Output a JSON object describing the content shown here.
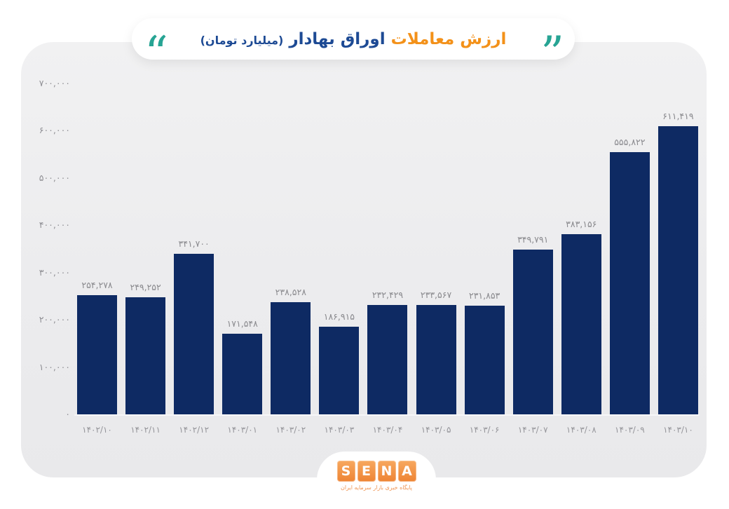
{
  "title": {
    "highlight": "ارزش معاملات",
    "rest": "اوراق بهادار",
    "unit": "(میلیارد تومان)",
    "quote_left_glyph": "“",
    "quote_right_glyph": "”"
  },
  "colors": {
    "bar": "#0e2a63",
    "title_highlight": "#f39119",
    "title_main": "#1d4a94",
    "quote_teal": "#27a494",
    "sena_orange": "#ee8434",
    "card_background": "#ececee",
    "label_gray": "#8a8a8e"
  },
  "chart_data": {
    "type": "bar",
    "title": "ارزش معاملات اوراق بهادار (میلیارد تومان)",
    "xlabel": "",
    "ylabel": "",
    "ylim": [
      0,
      700000
    ],
    "grid": false,
    "legend": "none",
    "categories": [
      "۱۴۰۲/۱۰",
      "۱۴۰۲/۱۱",
      "۱۴۰۲/۱۲",
      "۱۴۰۳/۰۱",
      "۱۴۰۳/۰۲",
      "۱۴۰۳/۰۳",
      "۱۴۰۳/۰۴",
      "۱۴۰۳/۰۵",
      "۱۴۰۳/۰۶",
      "۱۴۰۳/۰۷",
      "۱۴۰۳/۰۸",
      "۱۴۰۳/۰۹",
      "۱۴۰۳/۱۰"
    ],
    "categories_latin": [
      "1402/10",
      "1402/11",
      "1402/12",
      "1403/01",
      "1403/02",
      "1403/03",
      "1403/04",
      "1403/05",
      "1403/06",
      "1403/07",
      "1403/08",
      "1403/09",
      "1403/10"
    ],
    "values": [
      254278,
      249252,
      341700,
      171548,
      238528,
      186915,
      232429,
      233567,
      231853,
      349791,
      383156,
      555822,
      611419
    ],
    "value_labels": [
      "۲۵۴,۲۷۸",
      "۲۴۹,۲۵۲",
      "۳۴۱,۷۰۰",
      "۱۷۱,۵۴۸",
      "۲۳۸,۵۲۸",
      "۱۸۶,۹۱۵",
      "۲۳۲,۴۲۹",
      "۲۳۳,۵۶۷",
      "۲۳۱,۸۵۳",
      "۳۴۹,۷۹۱",
      "۳۸۳,۱۵۶",
      "۵۵۵,۸۲۲",
      "۶۱۱,۴۱۹"
    ],
    "y_ticks": [
      {
        "label": "۷۰۰,۰۰۰",
        "value": 700000
      },
      {
        "label": "۶۰۰,۰۰۰",
        "value": 600000
      },
      {
        "label": "۵۰۰,۰۰۰",
        "value": 500000
      },
      {
        "label": "۴۰۰,۰۰۰",
        "value": 400000
      },
      {
        "label": "۳۰۰,۰۰۰",
        "value": 300000
      },
      {
        "label": "۲۰۰,۰۰۰",
        "value": 200000
      },
      {
        "label": "۱۰۰,۰۰۰",
        "value": 100000
      },
      {
        "label": "۰",
        "value": 0
      }
    ]
  },
  "footer": {
    "logo_letters": [
      "S",
      "E",
      "N",
      "A"
    ],
    "tagline": "پایگاه خبری بازار سرمایه ایران"
  }
}
